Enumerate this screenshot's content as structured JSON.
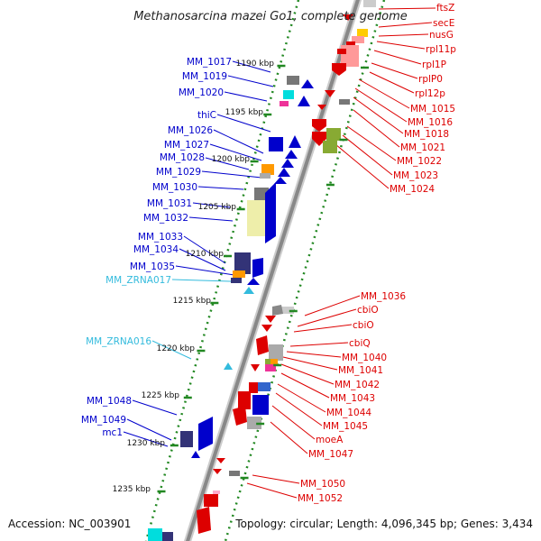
{
  "title": "Methanosarcina mazei Go1, complete genome",
  "accession": "Accession: NC_003901",
  "topology": "Topology: circular; Length: 4,096,345 bp; Genes: 3,434",
  "colors": {
    "forward": "#0000cc",
    "reverse": "#dd0000",
    "rna": "#33bbdd",
    "backbone": "#888888",
    "dots": "#228822"
  },
  "ticks": [
    "1190 kbp",
    "1195 kbp",
    "1200 kbp",
    "1205 kbp",
    "1210 kbp",
    "1215 kbp",
    "1220 kbp",
    "1225 kbp",
    "1230 kbp",
    "1235 kbp"
  ],
  "left_labels": [
    {
      "text": "MM_1017",
      "type": "forward"
    },
    {
      "text": "MM_1019",
      "type": "forward"
    },
    {
      "text": "MM_1020",
      "type": "forward"
    },
    {
      "text": "thiC",
      "type": "forward"
    },
    {
      "text": "MM_1026",
      "type": "forward"
    },
    {
      "text": "MM_1027",
      "type": "forward"
    },
    {
      "text": "MM_1028",
      "type": "forward"
    },
    {
      "text": "MM_1029",
      "type": "forward"
    },
    {
      "text": "MM_1030",
      "type": "forward"
    },
    {
      "text": "MM_1031",
      "type": "forward"
    },
    {
      "text": "MM_1032",
      "type": "forward"
    },
    {
      "text": "MM_1033",
      "type": "forward"
    },
    {
      "text": "MM_1034",
      "type": "forward"
    },
    {
      "text": "MM_1035",
      "type": "forward"
    },
    {
      "text": "MM_ZRNA017",
      "type": "rna"
    },
    {
      "text": "MM_ZRNA016",
      "type": "rna"
    },
    {
      "text": "MM_1048",
      "type": "forward"
    },
    {
      "text": "MM_1049",
      "type": "forward"
    },
    {
      "text": "mc1",
      "type": "forward"
    }
  ],
  "right_labels": [
    {
      "text": "ftsZ"
    },
    {
      "text": "secE"
    },
    {
      "text": "nusG"
    },
    {
      "text": "rpl11p"
    },
    {
      "text": "rpl1P"
    },
    {
      "text": "rplP0"
    },
    {
      "text": "rpl12p"
    },
    {
      "text": "MM_1015"
    },
    {
      "text": "MM_1016"
    },
    {
      "text": "MM_1018"
    },
    {
      "text": "MM_1021"
    },
    {
      "text": "MM_1022"
    },
    {
      "text": "MM_1023"
    },
    {
      "text": "MM_1024"
    },
    {
      "text": "MM_1036"
    },
    {
      "text": "cbiO"
    },
    {
      "text": "cbiO"
    },
    {
      "text": "cbiQ"
    },
    {
      "text": "MM_1040"
    },
    {
      "text": "MM_1041"
    },
    {
      "text": "MM_1042"
    },
    {
      "text": "MM_1043"
    },
    {
      "text": "MM_1044"
    },
    {
      "text": "MM_1045"
    },
    {
      "text": "moeA"
    },
    {
      "text": "MM_1047"
    },
    {
      "text": "MM_1050"
    },
    {
      "text": "MM_1052"
    }
  ]
}
